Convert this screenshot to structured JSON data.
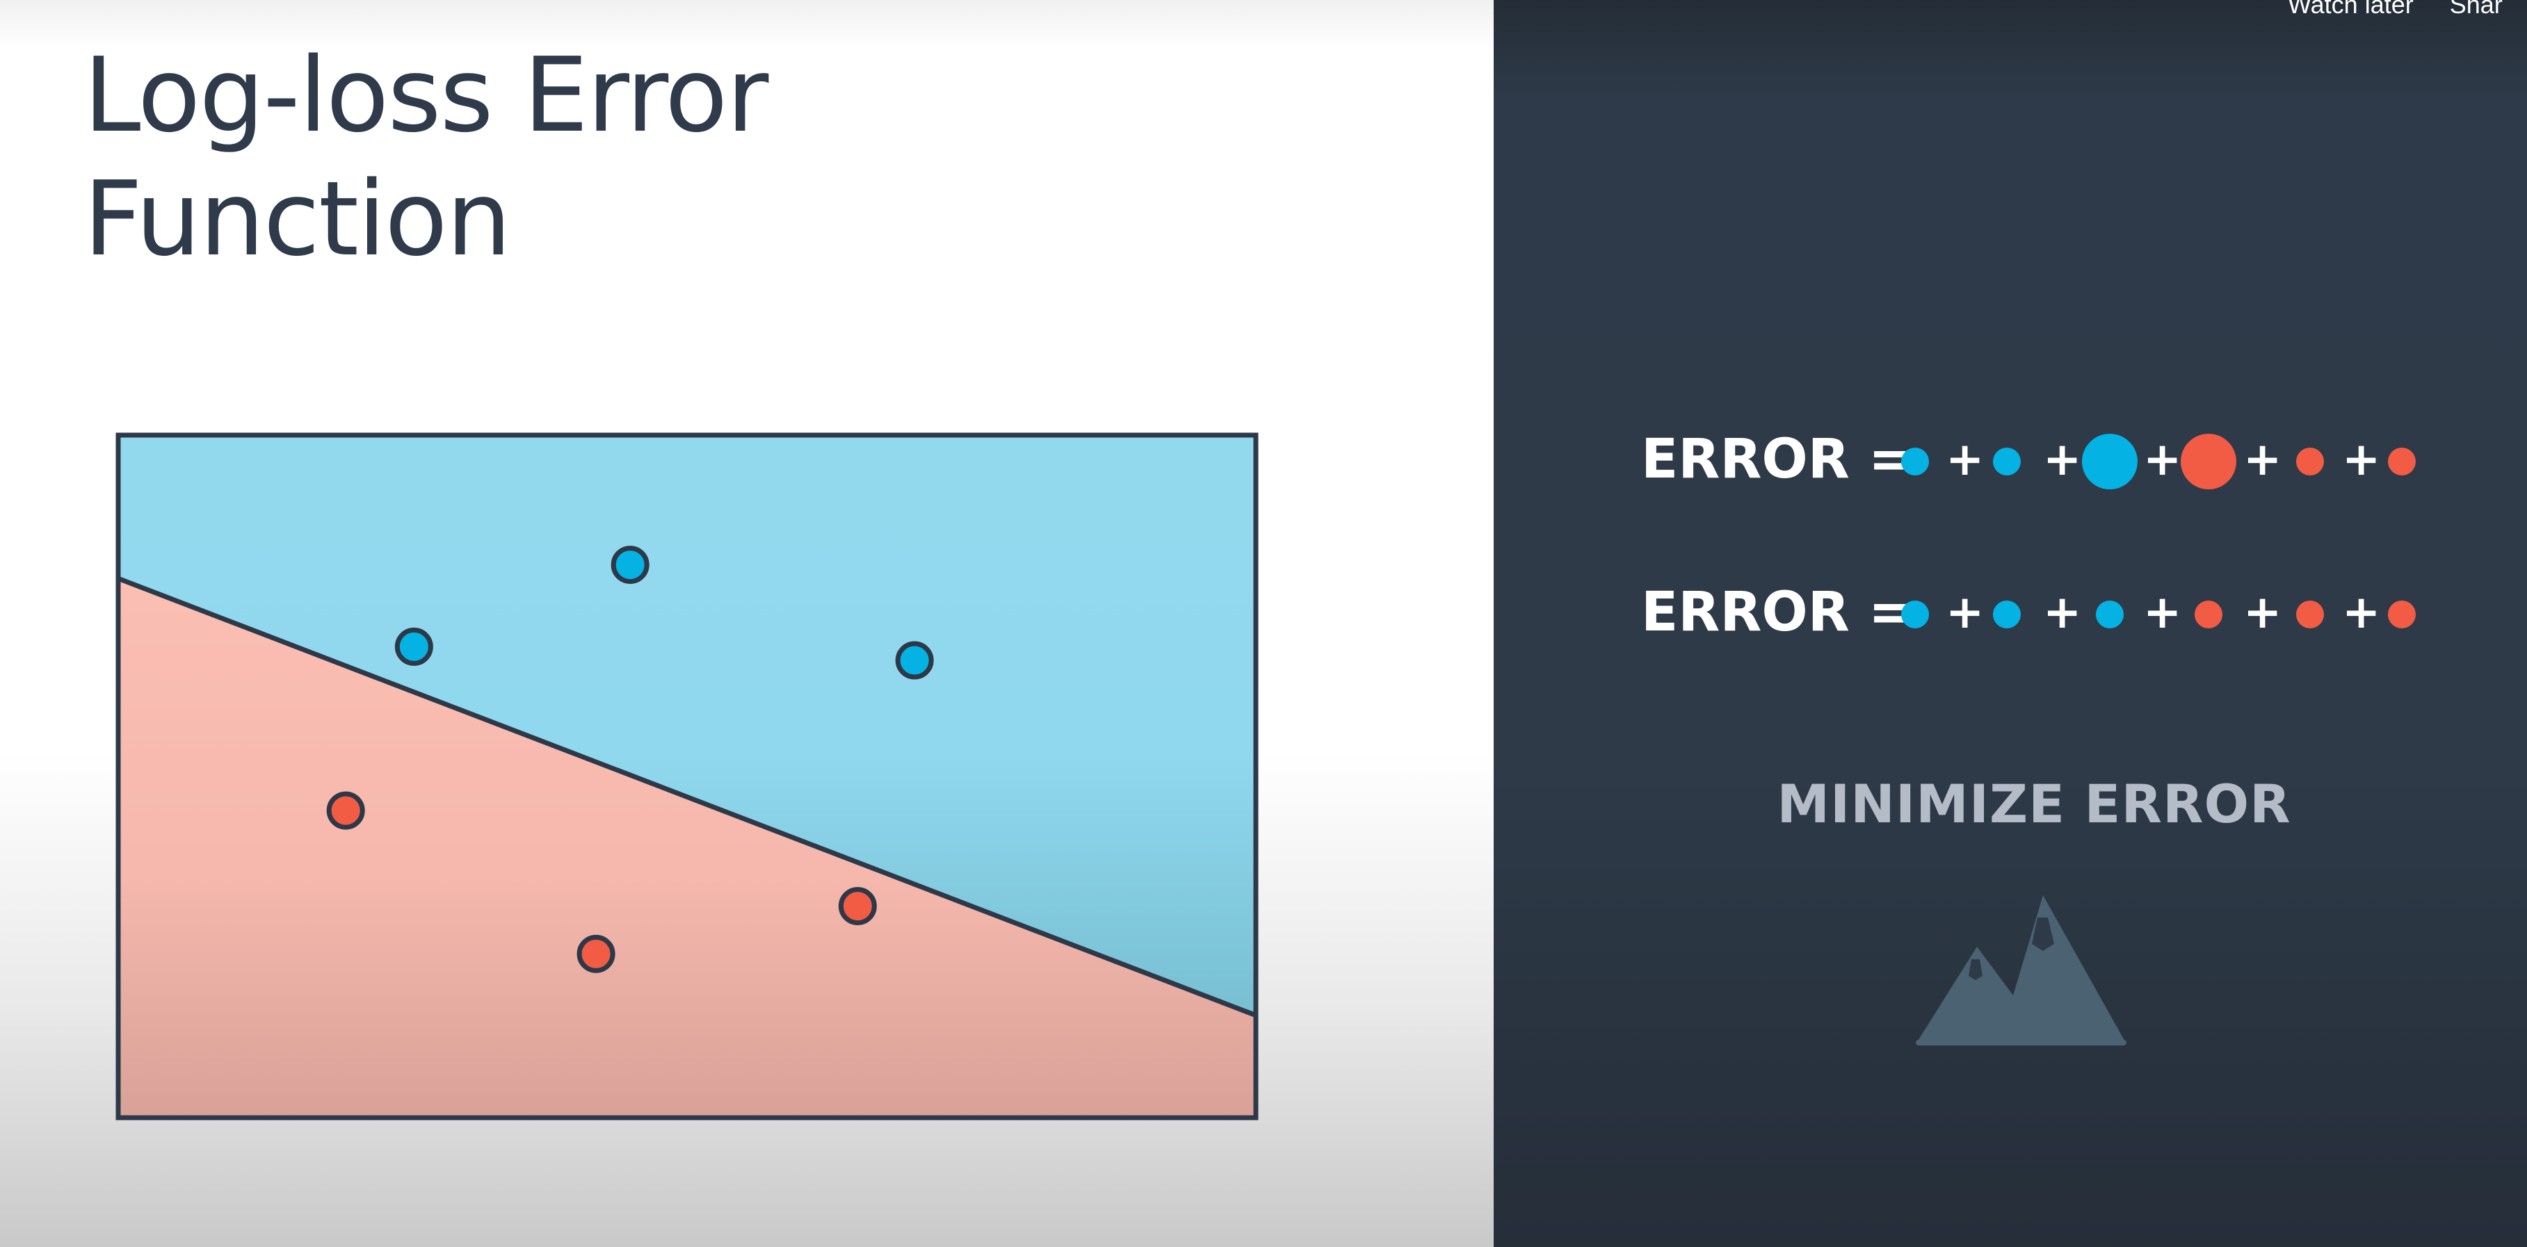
{
  "slide": {
    "title_line1": "Log-loss Error",
    "title_line2": "Function"
  },
  "player_controls": {
    "watch_later": "Watch later",
    "share": "Shar"
  },
  "colors": {
    "blue_region": "#93d9ee",
    "red_region": "#fbbcb1",
    "blue_point": "#04b3e4",
    "red_point": "#f25c45",
    "dark_panel": "#2e3a48"
  },
  "chart_data": {
    "type": "scatter",
    "title": "",
    "xlabel": "",
    "ylabel": "",
    "boundary": {
      "type": "line",
      "from": [
        0,
        0.79
      ],
      "to": [
        1,
        0.15
      ]
    },
    "series": [
      {
        "class": "blue",
        "points": [
          [
            0.26,
            0.69
          ],
          [
            0.45,
            0.81
          ],
          [
            0.7,
            0.67
          ]
        ]
      },
      {
        "class": "red",
        "points": [
          [
            0.2,
            0.45
          ],
          [
            0.42,
            0.24
          ],
          [
            0.65,
            0.31
          ]
        ]
      }
    ]
  },
  "equations": [
    {
      "label": "ERROR =",
      "terms": [
        {
          "color": "blue",
          "size": "small"
        },
        {
          "color": "blue",
          "size": "small"
        },
        {
          "color": "blue",
          "size": "large"
        },
        {
          "color": "red",
          "size": "large"
        },
        {
          "color": "red",
          "size": "small"
        },
        {
          "color": "red",
          "size": "small"
        }
      ],
      "operator": "+"
    },
    {
      "label": "ERROR =",
      "terms": [
        {
          "color": "blue",
          "size": "small"
        },
        {
          "color": "blue",
          "size": "small"
        },
        {
          "color": "blue",
          "size": "small"
        },
        {
          "color": "red",
          "size": "small"
        },
        {
          "color": "red",
          "size": "small"
        },
        {
          "color": "red",
          "size": "small"
        }
      ],
      "operator": "+"
    }
  ],
  "minimize_label": "MINIMIZE ERROR",
  "icons": {
    "mountain": "mountain-icon"
  }
}
